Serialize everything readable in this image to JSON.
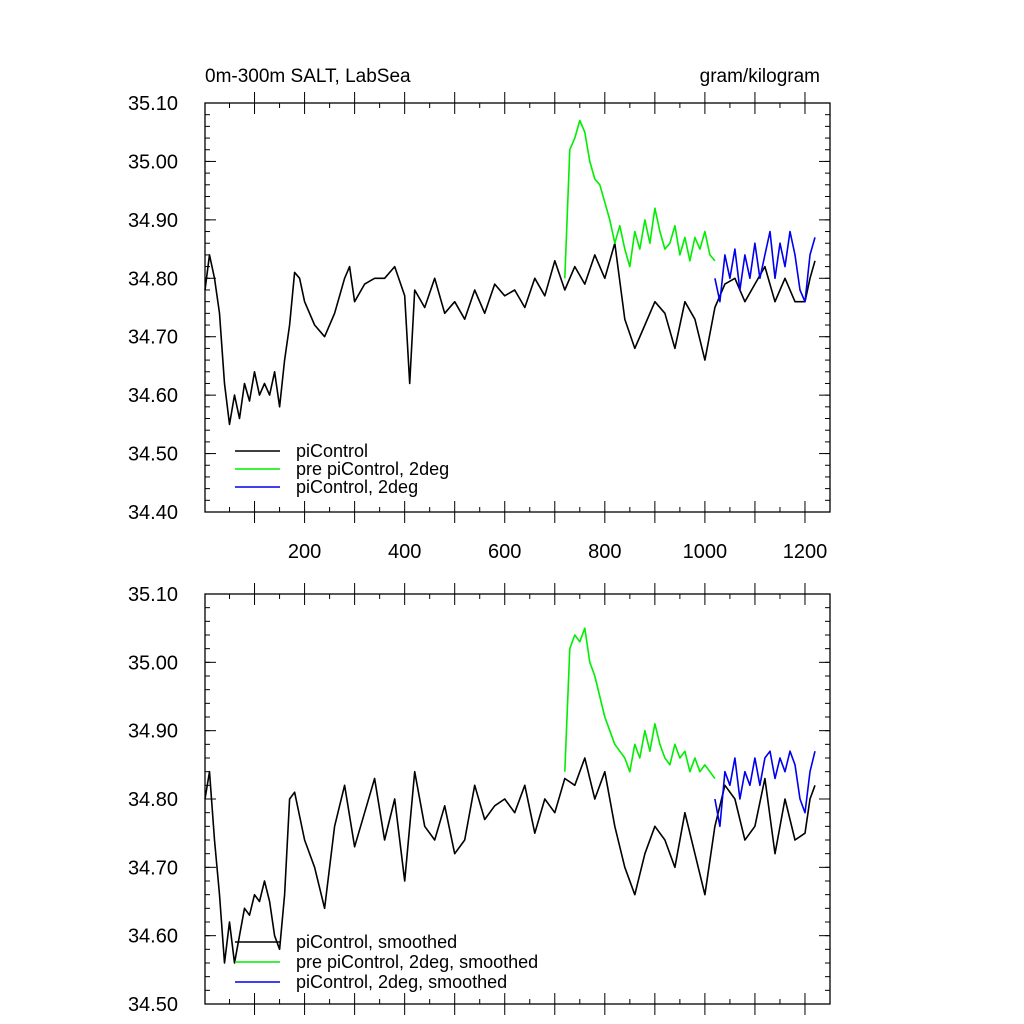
{
  "chart_data": [
    {
      "type": "line",
      "title": "0m-300m SALT, LabSea",
      "units": "gram/kilogram",
      "xlim": [
        1,
        1250
      ],
      "ylim": [
        34.4,
        35.1
      ],
      "yticks": [
        "34.40",
        "34.50",
        "34.60",
        "34.70",
        "34.80",
        "34.90",
        "35.00",
        "35.10"
      ],
      "xticks": [
        "200",
        "400",
        "600",
        "800",
        "1000",
        "1200"
      ],
      "legend_position": "bottom-left",
      "series": [
        {
          "name": "piControl",
          "color": "#000000",
          "x": [
            1,
            10,
            20,
            30,
            40,
            50,
            60,
            70,
            80,
            90,
            100,
            110,
            120,
            130,
            140,
            150,
            160,
            170,
            180,
            190,
            200,
            220,
            240,
            260,
            280,
            290,
            300,
            320,
            340,
            360,
            380,
            400,
            410,
            420,
            440,
            460,
            480,
            500,
            520,
            540,
            560,
            580,
            600,
            620,
            640,
            660,
            680,
            700,
            720,
            740,
            760,
            780,
            800,
            820,
            840,
            860,
            880,
            900,
            920,
            940,
            960,
            980,
            1000,
            1020,
            1040,
            1060,
            1080,
            1100,
            1120,
            1140,
            1160,
            1180,
            1200,
            1210,
            1220
          ],
          "y": [
            34.78,
            34.84,
            34.8,
            34.74,
            34.62,
            34.55,
            34.6,
            34.56,
            34.62,
            34.59,
            34.64,
            34.6,
            34.62,
            34.6,
            34.64,
            34.58,
            34.66,
            34.72,
            34.81,
            34.8,
            34.76,
            34.72,
            34.7,
            34.74,
            34.8,
            34.82,
            34.76,
            34.79,
            34.8,
            34.8,
            34.82,
            34.77,
            34.62,
            34.78,
            34.75,
            34.8,
            34.74,
            34.76,
            34.73,
            34.78,
            34.74,
            34.79,
            34.77,
            34.78,
            34.75,
            34.8,
            34.77,
            34.83,
            34.78,
            34.82,
            34.79,
            34.84,
            34.8,
            34.86,
            34.73,
            34.68,
            34.72,
            34.76,
            34.74,
            34.68,
            34.76,
            34.73,
            34.66,
            34.75,
            34.79,
            34.8,
            34.76,
            34.79,
            34.82,
            34.76,
            34.8,
            34.76,
            34.76,
            34.8,
            34.83
          ]
        },
        {
          "name": "pre piControl, 2deg",
          "color": "#00ee00",
          "x": [
            720,
            730,
            740,
            750,
            760,
            770,
            780,
            790,
            800,
            810,
            820,
            830,
            840,
            850,
            860,
            870,
            880,
            890,
            900,
            910,
            920,
            930,
            940,
            950,
            960,
            970,
            980,
            990,
            1000,
            1010,
            1020
          ],
          "y": [
            34.8,
            35.02,
            35.04,
            35.07,
            35.05,
            35.0,
            34.97,
            34.96,
            34.93,
            34.9,
            34.86,
            34.89,
            34.85,
            34.82,
            34.88,
            34.85,
            34.9,
            34.86,
            34.92,
            34.88,
            34.85,
            34.86,
            34.89,
            34.84,
            34.87,
            34.83,
            34.87,
            34.85,
            34.88,
            34.84,
            34.83
          ]
        },
        {
          "name": "piControl, 2deg",
          "color": "#0000ee",
          "x": [
            1020,
            1030,
            1040,
            1050,
            1060,
            1070,
            1080,
            1090,
            1100,
            1110,
            1120,
            1130,
            1140,
            1150,
            1160,
            1170,
            1180,
            1190,
            1200,
            1210,
            1220
          ],
          "y": [
            34.8,
            34.76,
            34.84,
            34.8,
            34.85,
            34.78,
            34.84,
            34.8,
            34.86,
            34.8,
            34.84,
            34.88,
            34.8,
            34.86,
            34.82,
            34.88,
            34.84,
            34.78,
            34.76,
            34.84,
            34.87
          ]
        }
      ]
    },
    {
      "type": "line",
      "xlim": [
        1,
        1250
      ],
      "ylim": [
        34.5,
        35.1
      ],
      "yticks": [
        "34.50",
        "34.60",
        "34.70",
        "34.80",
        "34.90",
        "35.00",
        "35.10"
      ],
      "legend_position": "bottom-left",
      "series": [
        {
          "name": "piControl, smoothed",
          "color": "#000000",
          "x": [
            1,
            10,
            20,
            30,
            40,
            50,
            60,
            70,
            80,
            90,
            100,
            110,
            120,
            130,
            140,
            150,
            160,
            170,
            180,
            200,
            220,
            240,
            260,
            280,
            300,
            320,
            340,
            360,
            380,
            400,
            420,
            440,
            460,
            480,
            500,
            520,
            540,
            560,
            580,
            600,
            620,
            640,
            660,
            680,
            700,
            720,
            740,
            760,
            780,
            800,
            820,
            840,
            860,
            880,
            900,
            920,
            940,
            960,
            980,
            1000,
            1020,
            1040,
            1060,
            1080,
            1100,
            1120,
            1140,
            1160,
            1180,
            1200,
            1210,
            1220
          ],
          "y": [
            34.8,
            34.84,
            34.74,
            34.66,
            34.56,
            34.62,
            34.56,
            34.6,
            34.64,
            34.63,
            34.66,
            34.65,
            34.68,
            34.65,
            34.6,
            34.58,
            34.66,
            34.8,
            34.81,
            34.74,
            34.7,
            34.64,
            34.76,
            34.82,
            34.73,
            34.78,
            34.83,
            34.74,
            34.8,
            34.68,
            34.84,
            34.76,
            34.74,
            34.79,
            34.72,
            34.74,
            34.82,
            34.77,
            34.79,
            34.8,
            34.78,
            34.82,
            34.75,
            34.8,
            34.78,
            34.83,
            34.82,
            34.86,
            34.8,
            34.84,
            34.76,
            34.7,
            34.66,
            34.72,
            34.76,
            34.74,
            34.7,
            34.78,
            34.72,
            34.66,
            34.76,
            34.82,
            34.8,
            34.74,
            34.76,
            34.83,
            34.72,
            34.8,
            34.74,
            34.75,
            34.8,
            34.82
          ]
        },
        {
          "name": "pre piControl, 2deg, smoothed",
          "color": "#00ee00",
          "x": [
            720,
            730,
            740,
            750,
            760,
            770,
            780,
            790,
            800,
            810,
            820,
            830,
            840,
            850,
            860,
            870,
            880,
            890,
            900,
            910,
            920,
            930,
            940,
            950,
            960,
            970,
            980,
            990,
            1000,
            1010,
            1020
          ],
          "y": [
            34.84,
            35.02,
            35.04,
            35.03,
            35.05,
            35.0,
            34.98,
            34.95,
            34.92,
            34.9,
            34.88,
            34.87,
            34.86,
            34.84,
            34.88,
            34.86,
            34.9,
            34.87,
            34.91,
            34.88,
            34.86,
            34.85,
            34.88,
            34.86,
            34.87,
            34.84,
            34.86,
            34.84,
            34.85,
            34.84,
            34.83
          ]
        },
        {
          "name": "piControl, 2deg, smoothed",
          "color": "#0000ee",
          "x": [
            1020,
            1030,
            1040,
            1050,
            1060,
            1070,
            1080,
            1090,
            1100,
            1110,
            1120,
            1130,
            1140,
            1150,
            1160,
            1170,
            1180,
            1190,
            1200,
            1210,
            1220
          ],
          "y": [
            34.8,
            34.76,
            34.84,
            34.82,
            34.86,
            34.8,
            34.84,
            34.82,
            34.86,
            34.82,
            34.86,
            34.87,
            34.83,
            34.86,
            34.84,
            34.87,
            34.85,
            34.8,
            34.78,
            34.84,
            34.87
          ]
        }
      ]
    }
  ]
}
